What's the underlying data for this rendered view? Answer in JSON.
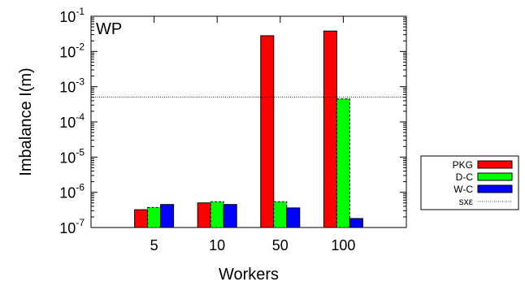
{
  "chart_data": {
    "type": "bar",
    "title": "",
    "panel_label": "WP",
    "xlabel": "Workers",
    "ylabel": "Imbalance I(m)",
    "yscale": "log",
    "ylim": [
      1e-07,
      0.1
    ],
    "yticks": [
      {
        "base": "10",
        "exp": "-7",
        "value": 1e-07
      },
      {
        "base": "10",
        "exp": "-6",
        "value": 1e-06
      },
      {
        "base": "10",
        "exp": "-5",
        "value": 1e-05
      },
      {
        "base": "10",
        "exp": "-4",
        "value": 0.0001
      },
      {
        "base": "10",
        "exp": "-3",
        "value": 0.001
      },
      {
        "base": "10",
        "exp": "-2",
        "value": 0.01
      },
      {
        "base": "10",
        "exp": "-1",
        "value": 0.1
      }
    ],
    "categories": [
      "5",
      "10",
      "50",
      "100"
    ],
    "series": [
      {
        "name": "PKG",
        "color": "#ff0000",
        "values": [
          3.2e-07,
          5e-07,
          0.028,
          0.038
        ]
      },
      {
        "name": "D-C",
        "color": "#00ff00",
        "values": [
          3.7e-07,
          5.4e-07,
          5.4e-07,
          0.00045
        ]
      },
      {
        "name": "W-C",
        "color": "#0000ff",
        "values": [
          4.5e-07,
          4.5e-07,
          3.6e-07,
          1.8e-07
        ]
      }
    ],
    "reference_line": {
      "name": "sxε",
      "value": 0.0005
    },
    "grid": false,
    "legend_position": "outside-right"
  }
}
